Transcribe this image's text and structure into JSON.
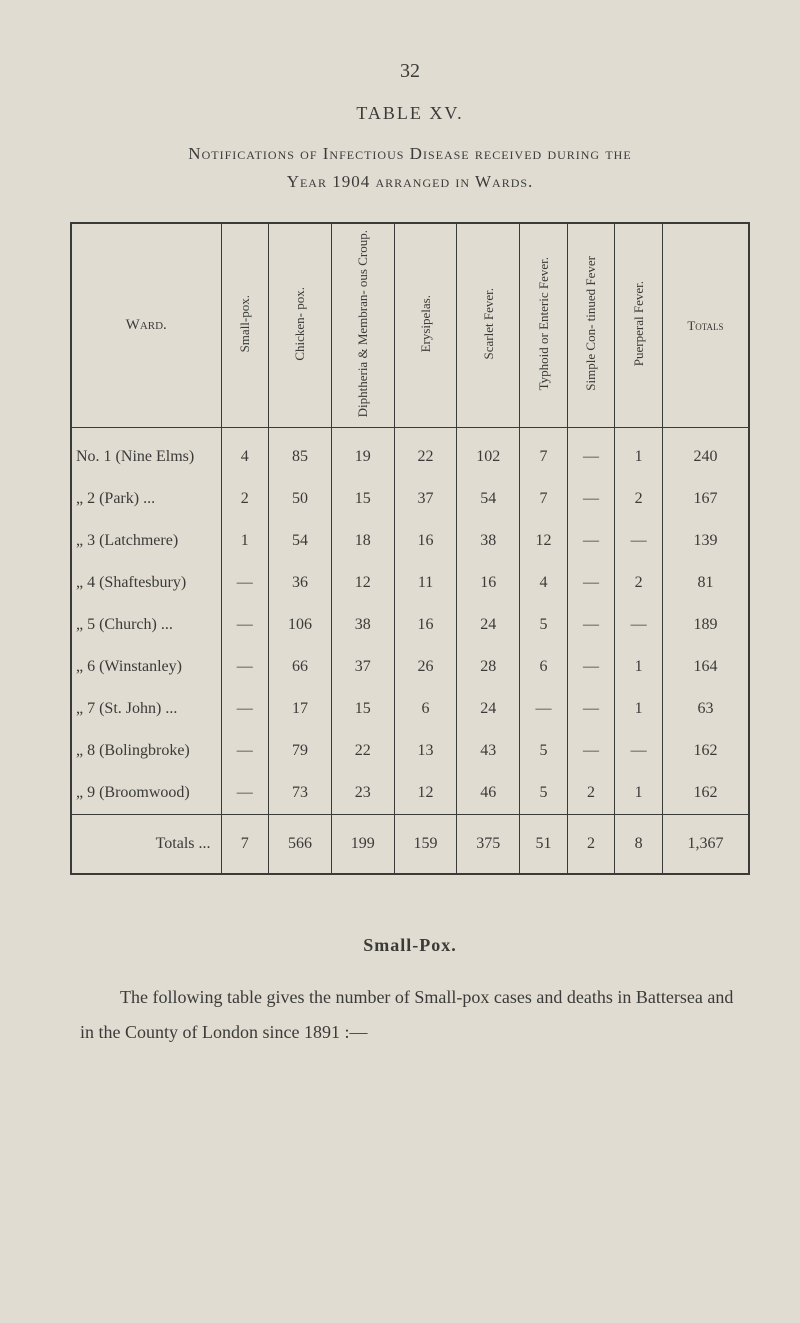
{
  "page_number": "32",
  "table_label": "TABLE XV.",
  "title": "Notifications of Infectious Disease received during the",
  "subtitle": "Year 1904 arranged in Wards.",
  "columns": {
    "ward": "Ward.",
    "smallpox": "Small-pox.",
    "chickenpox": "Chicken-\npox.",
    "diphtheria": "Diphtheria\n& Membran-\nous Croup.",
    "erysipelas": "Erysipelas.",
    "scarlet": "Scarlet\nFever.",
    "typhoid": "Typhoid or\nEnteric\nFever.",
    "simplecon": "Simple Con-\ntinued Fever",
    "puerperal": "Puerperal\nFever.",
    "totals": "Totals"
  },
  "rows": [
    {
      "ward": "No. 1 (Nine Elms)",
      "cells": [
        "4",
        "85",
        "19",
        "22",
        "102",
        "7",
        "—",
        "1",
        "240"
      ]
    },
    {
      "ward": "„ 2 (Park)    ...",
      "cells": [
        "2",
        "50",
        "15",
        "37",
        "54",
        "7",
        "—",
        "2",
        "167"
      ]
    },
    {
      "ward": "„ 3 (Latchmere)",
      "cells": [
        "1",
        "54",
        "18",
        "16",
        "38",
        "12",
        "—",
        "—",
        "139"
      ]
    },
    {
      "ward": "„ 4 (Shaftesbury)",
      "cells": [
        "—",
        "36",
        "12",
        "11",
        "16",
        "4",
        "—",
        "2",
        "81"
      ]
    },
    {
      "ward": "„ 5 (Church) ...",
      "cells": [
        "—",
        "106",
        "38",
        "16",
        "24",
        "5",
        "—",
        "—",
        "189"
      ]
    },
    {
      "ward": "„ 6 (Winstanley)",
      "cells": [
        "—",
        "66",
        "37",
        "26",
        "28",
        "6",
        "—",
        "1",
        "164"
      ]
    },
    {
      "ward": "„ 7 (St. John) ...",
      "cells": [
        "—",
        "17",
        "15",
        "6",
        "24",
        "—",
        "—",
        "1",
        "63"
      ]
    },
    {
      "ward": "„ 8 (Bolingbroke)",
      "cells": [
        "—",
        "79",
        "22",
        "13",
        "43",
        "5",
        "—",
        "—",
        "162"
      ]
    },
    {
      "ward": "„ 9 (Broomwood)",
      "cells": [
        "—",
        "73",
        "23",
        "12",
        "46",
        "5",
        "2",
        "1",
        "162"
      ]
    }
  ],
  "totals_row": {
    "label": "Totals  ...",
    "cells": [
      "7",
      "566",
      "199",
      "159",
      "375",
      "51",
      "2",
      "8",
      "1,367"
    ]
  },
  "section_heading": "Small-Pox.",
  "body_text": "The following table gives the number of Small-pox cases and deaths in Battersea and in the County of London since 1891 :—",
  "colors": {
    "background": "#e0dcd2",
    "text": "#3a3a38",
    "border": "#3a3a38"
  },
  "column_widths_pct": [
    22,
    6,
    8,
    10,
    8,
    9,
    10,
    10,
    9,
    8
  ]
}
